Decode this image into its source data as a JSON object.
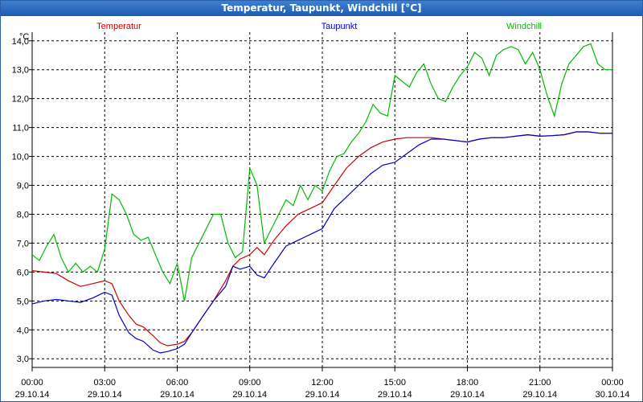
{
  "window": {
    "title": "Temperatur, Taupunkt, Windchill [°C]"
  },
  "chart_data": {
    "type": "line",
    "title": "Temperatur, Taupunkt, Windchill [°C]",
    "ylabel": "°C",
    "ylim": [
      2.7,
      14.3
    ],
    "xlim": [
      0,
      24
    ],
    "grid": true,
    "legend_position": "top",
    "y_ticks": [
      "3,0",
      "4,0",
      "5,0",
      "6,0",
      "7,0",
      "8,0",
      "9,0",
      "10,0",
      "11,0",
      "12,0",
      "13,0",
      "14,0"
    ],
    "y_tick_values": [
      3,
      4,
      5,
      6,
      7,
      8,
      9,
      10,
      11,
      12,
      13,
      14
    ],
    "x_tick_values": [
      0,
      3,
      6,
      9,
      12,
      15,
      18,
      21,
      24
    ],
    "x_ticks_time": [
      "00:00",
      "03:00",
      "06:00",
      "09:00",
      "12:00",
      "15:00",
      "18:00",
      "21:00",
      "00:00"
    ],
    "x_ticks_date": [
      "29.10.14",
      "29.10.14",
      "29.10.14",
      "29.10.14",
      "29.10.14",
      "29.10.14",
      "29.10.14",
      "29.10.14",
      "30.10.14"
    ],
    "series": [
      {
        "name": "Temperatur",
        "color": "#cc0000",
        "x": [
          0,
          0.5,
          1,
          1.5,
          2,
          2.5,
          3,
          3.3,
          3.6,
          4,
          4.3,
          4.6,
          5,
          5.3,
          5.6,
          6,
          6.3,
          6.6,
          7,
          7.5,
          8,
          8.3,
          8.6,
          9,
          9.3,
          9.6,
          10,
          10.5,
          11,
          11.5,
          12,
          12.5,
          13,
          13.5,
          14,
          14.5,
          15,
          15.5,
          16,
          16.5,
          17,
          17.5,
          18,
          18.5,
          19,
          19.5,
          20,
          20.5,
          21,
          21.5,
          22,
          22.5,
          23,
          23.5,
          24
        ],
        "y": [
          6.05,
          6.0,
          5.95,
          5.7,
          5.5,
          5.6,
          5.7,
          5.6,
          5.0,
          4.5,
          4.2,
          4.1,
          3.8,
          3.55,
          3.45,
          3.5,
          3.6,
          3.9,
          4.4,
          5.0,
          5.7,
          6.2,
          6.45,
          6.6,
          6.85,
          6.6,
          7.1,
          7.6,
          8.0,
          8.2,
          8.4,
          9.0,
          9.6,
          10.0,
          10.3,
          10.5,
          10.6,
          10.65,
          10.65,
          10.65,
          10.6,
          10.55,
          10.5,
          10.6,
          10.65,
          10.65,
          10.7,
          10.75,
          10.7,
          10.72,
          10.75,
          10.85,
          10.85,
          10.8,
          10.8
        ]
      },
      {
        "name": "Taupunkt",
        "color": "#0000cc",
        "x": [
          0,
          0.5,
          1,
          1.5,
          2,
          2.5,
          3,
          3.3,
          3.6,
          4,
          4.3,
          4.6,
          5,
          5.3,
          5.6,
          6,
          6.3,
          6.6,
          7,
          7.5,
          8,
          8.3,
          8.6,
          9,
          9.3,
          9.6,
          10,
          10.5,
          11,
          11.5,
          12,
          12.5,
          13,
          13.5,
          14,
          14.5,
          15,
          15.5,
          16,
          16.5,
          17,
          17.5,
          18,
          18.5,
          19,
          19.5,
          20,
          20.5,
          21,
          21.5,
          22,
          22.5,
          23,
          23.5,
          24
        ],
        "y": [
          4.9,
          5.0,
          5.05,
          5.0,
          4.95,
          5.1,
          5.3,
          5.2,
          4.5,
          3.9,
          3.7,
          3.6,
          3.3,
          3.2,
          3.25,
          3.35,
          3.5,
          3.9,
          4.4,
          5.0,
          5.5,
          6.2,
          6.1,
          6.2,
          5.9,
          5.8,
          6.3,
          6.9,
          7.1,
          7.3,
          7.5,
          8.2,
          8.6,
          9.0,
          9.4,
          9.7,
          9.8,
          10.1,
          10.4,
          10.6,
          10.6,
          10.55,
          10.5,
          10.6,
          10.65,
          10.65,
          10.7,
          10.75,
          10.7,
          10.72,
          10.75,
          10.85,
          10.85,
          10.8,
          10.8
        ]
      },
      {
        "name": "Windchill",
        "color": "#00bb00",
        "x": [
          0,
          0.3,
          0.6,
          0.9,
          1.2,
          1.5,
          1.8,
          2.1,
          2.4,
          2.7,
          3.0,
          3.3,
          3.6,
          3.9,
          4.2,
          4.5,
          4.8,
          5.1,
          5.4,
          5.7,
          6.0,
          6.3,
          6.6,
          6.9,
          7.2,
          7.5,
          7.8,
          8.1,
          8.4,
          8.7,
          9.0,
          9.3,
          9.6,
          9.9,
          10.2,
          10.5,
          10.8,
          11.1,
          11.4,
          11.7,
          12.0,
          12.3,
          12.6,
          12.9,
          13.2,
          13.5,
          13.8,
          14.1,
          14.4,
          14.7,
          15.0,
          15.3,
          15.6,
          15.9,
          16.2,
          16.5,
          16.8,
          17.1,
          17.4,
          17.7,
          18.0,
          18.3,
          18.6,
          18.9,
          19.2,
          19.5,
          19.8,
          20.1,
          20.4,
          20.7,
          21.0,
          21.3,
          21.6,
          21.9,
          22.2,
          22.5,
          22.8,
          23.1,
          23.4,
          23.7,
          24.0
        ],
        "y": [
          6.6,
          6.4,
          6.9,
          7.3,
          6.5,
          6.0,
          6.3,
          6.0,
          6.2,
          6.0,
          6.8,
          8.7,
          8.5,
          8.0,
          7.3,
          7.1,
          7.2,
          6.6,
          6.0,
          5.6,
          6.3,
          5.0,
          6.5,
          7.0,
          7.5,
          8.0,
          8.0,
          7.0,
          6.5,
          6.7,
          9.6,
          9.0,
          7.0,
          7.5,
          8.0,
          8.5,
          8.3,
          9.0,
          8.5,
          9.0,
          8.8,
          9.5,
          10.0,
          10.1,
          10.5,
          10.8,
          11.2,
          11.8,
          11.5,
          11.4,
          12.8,
          12.6,
          12.4,
          12.9,
          13.2,
          12.5,
          12.0,
          11.9,
          12.4,
          12.8,
          13.1,
          13.6,
          13.4,
          12.8,
          13.5,
          13.7,
          13.8,
          13.7,
          13.2,
          13.6,
          13.0,
          12.1,
          11.4,
          12.5,
          13.2,
          13.5,
          13.8,
          13.9,
          13.2,
          13.0,
          13.0
        ]
      }
    ]
  }
}
